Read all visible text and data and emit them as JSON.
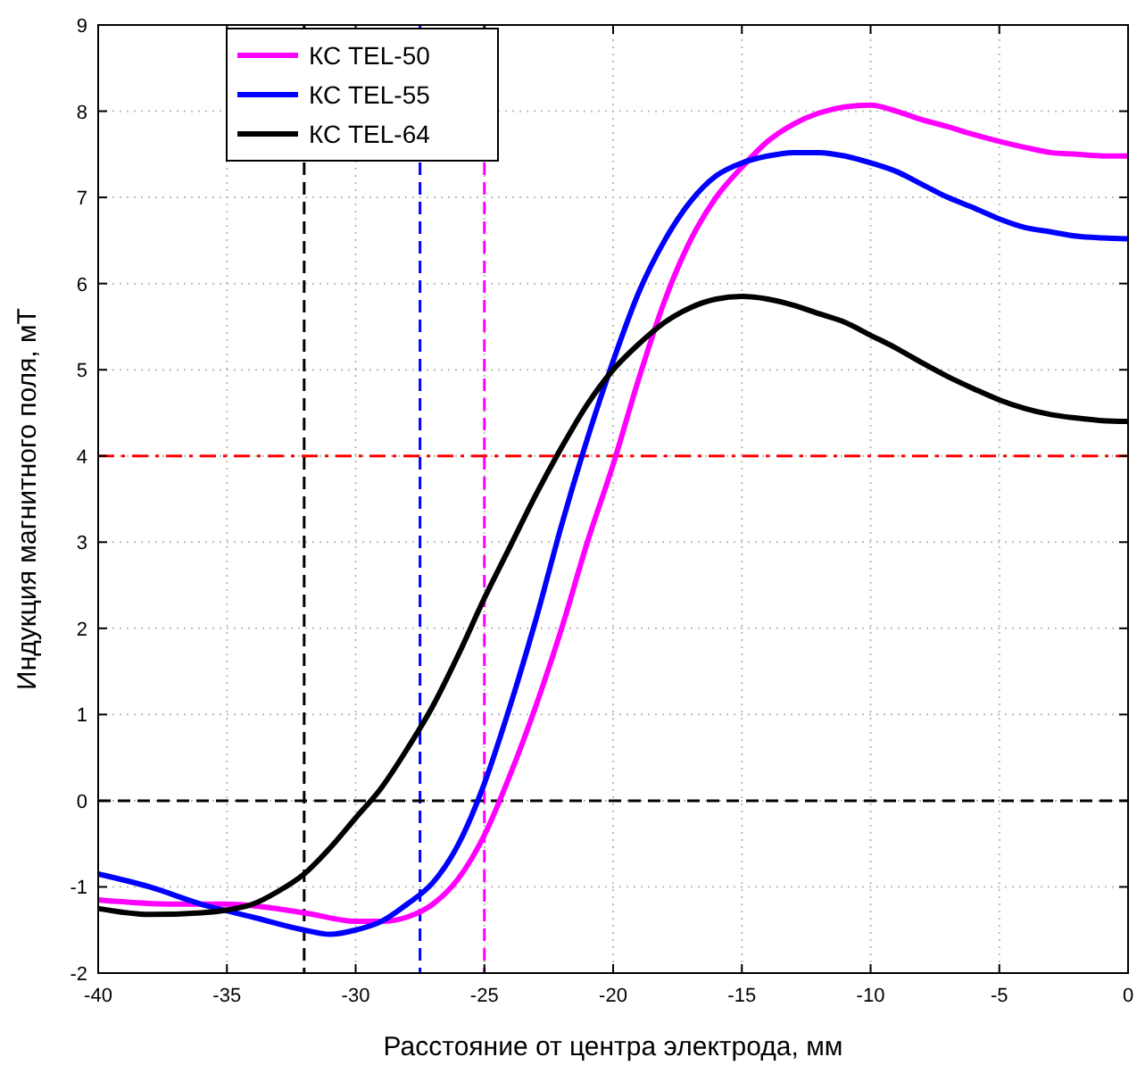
{
  "chart_data": {
    "type": "line",
    "xlabel": "Расстояние от центра электрода, мм",
    "ylabel": "Индукция магнитного поля, мТ",
    "xlim": [
      -40,
      0
    ],
    "ylim": [
      -2,
      9
    ],
    "xticks": [
      -40,
      -35,
      -30,
      -25,
      -20,
      -15,
      -10,
      -5,
      0
    ],
    "yticks": [
      -2,
      -1,
      0,
      1,
      2,
      3,
      4,
      5,
      6,
      7,
      8,
      9
    ],
    "grid": true,
    "legend": "top left",
    "marker": "none",
    "line_style": "solid",
    "series": [
      {
        "name": "КС TEL-50",
        "color": "#ff00ff",
        "x": [
          -40,
          -37,
          -35,
          -32,
          -30,
          -29,
          -28,
          -27,
          -26,
          -25,
          -24,
          -23,
          -22,
          -21,
          -20,
          -19,
          -18,
          -17,
          -16,
          -15,
          -14,
          -13,
          -12,
          -11,
          -10,
          -9,
          -8,
          -7,
          -6,
          -5,
          -4,
          -3,
          -2,
          -1,
          0
        ],
        "values": [
          -1.15,
          -1.2,
          -1.2,
          -1.3,
          -1.4,
          -1.4,
          -1.35,
          -1.2,
          -0.9,
          -0.4,
          0.3,
          1.1,
          2.0,
          3.0,
          3.9,
          4.9,
          5.8,
          6.5,
          7.0,
          7.35,
          7.65,
          7.85,
          7.98,
          8.05,
          8.07,
          8.0,
          7.9,
          7.82,
          7.73,
          7.65,
          7.58,
          7.52,
          7.5,
          7.48,
          7.48
        ]
      },
      {
        "name": "КС TEL-55",
        "color": "#0000ff",
        "x": [
          -40,
          -38,
          -36,
          -34,
          -32,
          -31,
          -30,
          -29,
          -28,
          -27,
          -26,
          -25,
          -24,
          -23,
          -22,
          -21,
          -20,
          -19,
          -18,
          -17,
          -16,
          -15,
          -14,
          -13,
          -12,
          -11,
          -10,
          -9,
          -8,
          -7,
          -6,
          -5,
          -4,
          -3,
          -2,
          -1,
          0
        ],
        "values": [
          -0.85,
          -1.0,
          -1.2,
          -1.35,
          -1.5,
          -1.55,
          -1.5,
          -1.4,
          -1.2,
          -0.95,
          -0.5,
          0.2,
          1.1,
          2.1,
          3.2,
          4.2,
          5.1,
          5.9,
          6.5,
          6.95,
          7.25,
          7.4,
          7.48,
          7.52,
          7.52,
          7.48,
          7.4,
          7.3,
          7.15,
          7.0,
          6.88,
          6.75,
          6.65,
          6.6,
          6.55,
          6.53,
          6.52
        ]
      },
      {
        "name": "КС TEL-64",
        "color": "#000000",
        "x": [
          -40,
          -38,
          -36,
          -34,
          -33,
          -32,
          -31,
          -30,
          -29,
          -28,
          -27,
          -26,
          -25,
          -24,
          -23,
          -22,
          -21,
          -20,
          -19,
          -18,
          -17,
          -16,
          -15,
          -14,
          -13,
          -12,
          -11,
          -10,
          -9,
          -8,
          -7,
          -6,
          -5,
          -4,
          -3,
          -2,
          -1,
          0
        ],
        "values": [
          -1.25,
          -1.32,
          -1.3,
          -1.2,
          -1.05,
          -0.85,
          -0.55,
          -0.2,
          0.15,
          0.6,
          1.1,
          1.7,
          2.35,
          2.95,
          3.55,
          4.1,
          4.6,
          5.0,
          5.3,
          5.55,
          5.72,
          5.82,
          5.85,
          5.82,
          5.75,
          5.65,
          5.55,
          5.4,
          5.25,
          5.08,
          4.92,
          4.78,
          4.65,
          4.55,
          4.48,
          4.44,
          4.41,
          4.4
        ]
      }
    ],
    "ref_lines": [
      {
        "axis": "x",
        "value": -32,
        "color": "#000000",
        "line_style": "dashed"
      },
      {
        "axis": "x",
        "value": -27.5,
        "color": "#0000ff",
        "line_style": "dashed"
      },
      {
        "axis": "x",
        "value": -25,
        "color": "#ff00ff",
        "line_style": "dashed"
      },
      {
        "axis": "y",
        "value": 0,
        "color": "#000000",
        "line_style": "dashed"
      },
      {
        "axis": "y",
        "value": 4,
        "color": "#ff0000",
        "line_style": "dashdot"
      }
    ]
  }
}
